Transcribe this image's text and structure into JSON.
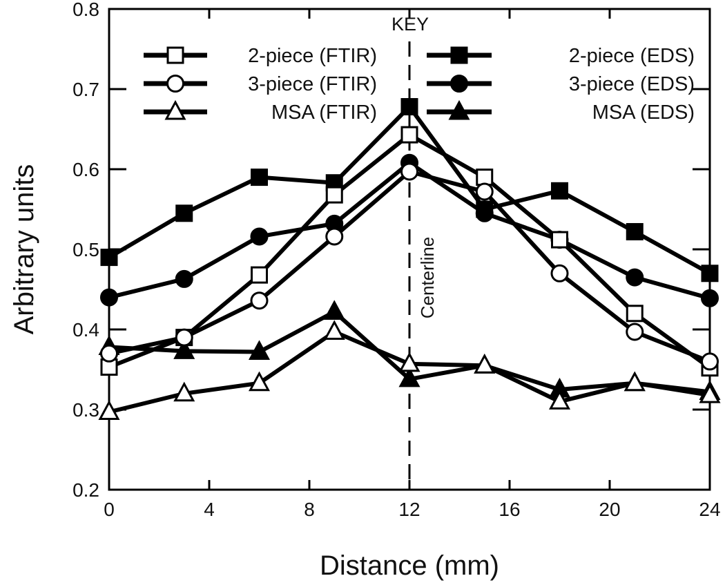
{
  "chart_data": {
    "type": "line",
    "title": "",
    "xlabel": "Distance (mm)",
    "ylabel": "Arbitrary units",
    "xlim": [
      0,
      24
    ],
    "ylim": [
      0.2,
      0.8
    ],
    "xticks": [
      0,
      4,
      8,
      12,
      16,
      20,
      24
    ],
    "yticks": [
      0.2,
      0.3,
      0.4,
      0.5,
      0.6,
      0.7,
      0.8
    ],
    "ytick_labels": [
      "0.2",
      "0.3",
      "0.4",
      "0.5",
      "0.6",
      "0.7",
      "0.8"
    ],
    "grid": false,
    "legend": {
      "title": "KEY",
      "placement": "top-center",
      "columns": 2
    },
    "annotations": [
      {
        "text": "Centerline",
        "x": 12
      }
    ],
    "x": [
      0,
      3,
      6,
      9,
      12,
      15,
      18,
      21,
      24
    ],
    "series": [
      {
        "name": "2-piece (FTIR)",
        "marker": "square",
        "filled": false,
        "values": [
          0.353,
          0.39,
          0.468,
          0.568,
          0.643,
          0.59,
          0.512,
          0.42,
          0.352
        ]
      },
      {
        "name": "3-piece (FTIR)",
        "marker": "circle",
        "filled": false,
        "values": [
          0.37,
          0.39,
          0.436,
          0.516,
          0.597,
          0.572,
          0.47,
          0.397,
          0.36
        ]
      },
      {
        "name": "MSA (FTIR)",
        "marker": "triangle",
        "filled": false,
        "values": [
          0.297,
          0.32,
          0.333,
          0.397,
          0.357,
          0.355,
          0.31,
          0.333,
          0.318
        ]
      },
      {
        "name": "2-piece (EDS)",
        "marker": "square",
        "filled": true,
        "values": [
          0.49,
          0.545,
          0.59,
          0.583,
          0.678,
          0.55,
          0.573,
          0.522,
          0.47
        ]
      },
      {
        "name": "3-piece (EDS)",
        "marker": "circle",
        "filled": true,
        "values": [
          0.44,
          0.463,
          0.516,
          0.532,
          0.608,
          0.545,
          0.512,
          0.465,
          0.439
        ]
      },
      {
        "name": "MSA (EDS)",
        "marker": "triangle",
        "filled": true,
        "values": [
          0.378,
          0.373,
          0.372,
          0.422,
          0.338,
          0.355,
          0.325,
          0.333,
          0.322
        ]
      }
    ]
  }
}
